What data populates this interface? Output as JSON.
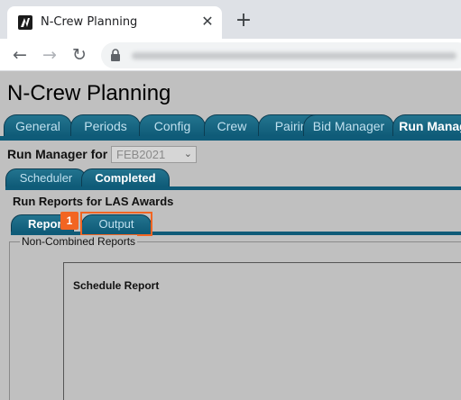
{
  "browser": {
    "tab_title": "N-Crew Planning",
    "close_glyph": "✕",
    "new_tab_glyph": "+",
    "back_glyph": "←",
    "forward_glyph": "→",
    "reload_glyph": "↻"
  },
  "app": {
    "title": "N-Crew Planning",
    "main_tabs": [
      "General",
      "Periods",
      "Config",
      "Crew",
      "Pairings",
      "Bid Manager",
      "Run Manag"
    ],
    "active_main_tab": "Run Manag"
  },
  "run_manager": {
    "label": "Run Manager for",
    "period_value": "FEB2021",
    "sub_tabs": [
      "Scheduler",
      "Completed"
    ],
    "active_sub_tab": "Completed"
  },
  "reports": {
    "heading": "Run Reports for LAS Awards",
    "tabs": [
      "Repor",
      "Output"
    ],
    "active_tab": "Repor",
    "annotation_badge": "1",
    "fieldset_legend": "Non-Combined Reports",
    "schedule_report_title": "Schedule Report"
  },
  "colors": {
    "tab_blue": "#0f5b78",
    "highlight_orange": "#f26522",
    "page_gray": "#c0c0c0"
  }
}
